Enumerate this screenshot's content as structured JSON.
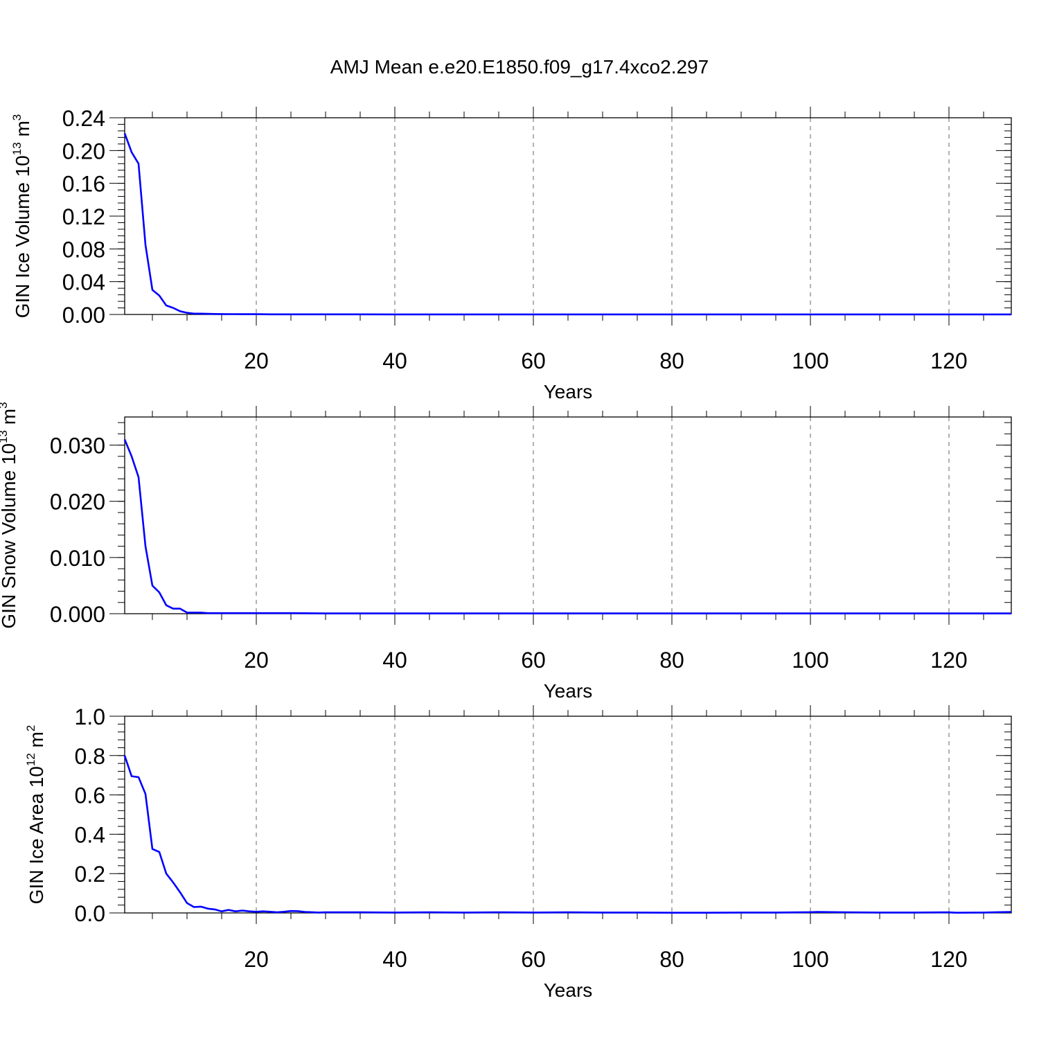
{
  "figure": {
    "title": "AMJ Mean e.e20.E1850.f09_g17.4xco2.297",
    "line_color": "#0000ff"
  },
  "chart_data": [
    {
      "type": "line",
      "xlabel": "Years",
      "ylabel_main": "GIN Ice Volume 10",
      "ylabel_exp": "13",
      "ylabel_unit": " m",
      "ylabel_unit_exp": "3",
      "xlim": [
        1,
        129
      ],
      "ylim": [
        0,
        0.24
      ],
      "xticks": [
        20,
        40,
        60,
        80,
        100,
        120
      ],
      "yticks": [
        0,
        0.04,
        0.08,
        0.12,
        0.16,
        0.2,
        0.24
      ],
      "ytick_labels": [
        "0.00",
        "0.04",
        "0.08",
        "0.12",
        "0.16",
        "0.20",
        "0.24"
      ],
      "grid_x": true,
      "series": [
        {
          "x": [
            1,
            2,
            3,
            4,
            5,
            6,
            7,
            8,
            9,
            10,
            11,
            12,
            13,
            14,
            15,
            16,
            17,
            18,
            19,
            20,
            22,
            25,
            30,
            40,
            50,
            60,
            70,
            80,
            90,
            100,
            110,
            120,
            129
          ],
          "y": [
            0.221,
            0.198,
            0.184,
            0.085,
            0.03,
            0.023,
            0.011,
            0.008,
            0.004,
            0.002,
            0.001,
            0.001,
            0.0008,
            0.0006,
            0.0005,
            0.0004,
            0.0004,
            0.0003,
            0.0003,
            0.0003,
            0.0002,
            0.0002,
            0.0002,
            0.0001,
            0.0001,
            0.0001,
            0.0001,
            0.0001,
            0.0001,
            0.0001,
            0.0001,
            0.0001,
            0.0001
          ]
        }
      ]
    },
    {
      "type": "line",
      "xlabel": "Years",
      "ylabel_main": "GIN Snow Volume 10",
      "ylabel_exp": "13",
      "ylabel_unit": " m",
      "ylabel_unit_exp": "3",
      "xlim": [
        1,
        129
      ],
      "ylim": [
        0,
        0.035
      ],
      "xticks": [
        20,
        40,
        60,
        80,
        100,
        120
      ],
      "yticks": [
        0,
        0.01,
        0.02,
        0.03
      ],
      "ytick_labels": [
        "0.000",
        "0.010",
        "0.020",
        "0.030"
      ],
      "grid_x": true,
      "series": [
        {
          "x": [
            1,
            2,
            3,
            4,
            5,
            6,
            7,
            8,
            9,
            10,
            11,
            12,
            13,
            14,
            15,
            16,
            18,
            20,
            25,
            30,
            40,
            50,
            60,
            70,
            80,
            90,
            100,
            110,
            120,
            129
          ],
          "y": [
            0.031,
            0.028,
            0.0243,
            0.012,
            0.005,
            0.0038,
            0.0015,
            0.0009,
            0.0009,
            0.0002,
            0.0002,
            0.0002,
            0.0001,
            0.0001,
            0.0001,
            0.0001,
            0.0001,
            0.0001,
            0.0001,
            5e-05,
            5e-05,
            5e-05,
            5e-05,
            5e-05,
            5e-05,
            5e-05,
            5e-05,
            5e-05,
            5e-05,
            5e-05
          ]
        }
      ]
    },
    {
      "type": "line",
      "xlabel": "Years",
      "ylabel_main": "GIN Ice Area 10",
      "ylabel_exp": "12",
      "ylabel_unit": " m",
      "ylabel_unit_exp": "2",
      "xlim": [
        1,
        129
      ],
      "ylim": [
        0,
        1.0
      ],
      "xticks": [
        20,
        40,
        60,
        80,
        100,
        120
      ],
      "yticks": [
        0,
        0.2,
        0.4,
        0.6,
        0.8,
        1.0
      ],
      "ytick_labels": [
        "0.0",
        "0.2",
        "0.4",
        "0.6",
        "0.8",
        "1.0"
      ],
      "grid_x": true,
      "series": [
        {
          "x": [
            1,
            2,
            3,
            4,
            5,
            6,
            7,
            8,
            9,
            10,
            11,
            12,
            13,
            14,
            15,
            16,
            17,
            18,
            19,
            20,
            21,
            22,
            23,
            24,
            25,
            26,
            27,
            28,
            29,
            30,
            32,
            35,
            40,
            45,
            50,
            55,
            60,
            65,
            70,
            75,
            80,
            85,
            90,
            95,
            100,
            101,
            105,
            110,
            115,
            120,
            121,
            125,
            127,
            129
          ],
          "y": [
            0.8,
            0.695,
            0.69,
            0.605,
            0.325,
            0.31,
            0.2,
            0.155,
            0.105,
            0.05,
            0.03,
            0.032,
            0.022,
            0.018,
            0.008,
            0.015,
            0.008,
            0.012,
            0.008,
            0.006,
            0.008,
            0.006,
            0.003,
            0.006,
            0.01,
            0.009,
            0.005,
            0.004,
            0.002,
            0.003,
            0.003,
            0.003,
            0.002,
            0.003,
            0.002,
            0.003,
            0.002,
            0.003,
            0.002,
            0.002,
            0.001,
            0.001,
            0.002,
            0.002,
            0.004,
            0.005,
            0.003,
            0.002,
            0.002,
            0.003,
            0.001,
            0.002,
            0.004,
            0.005
          ]
        }
      ]
    }
  ]
}
